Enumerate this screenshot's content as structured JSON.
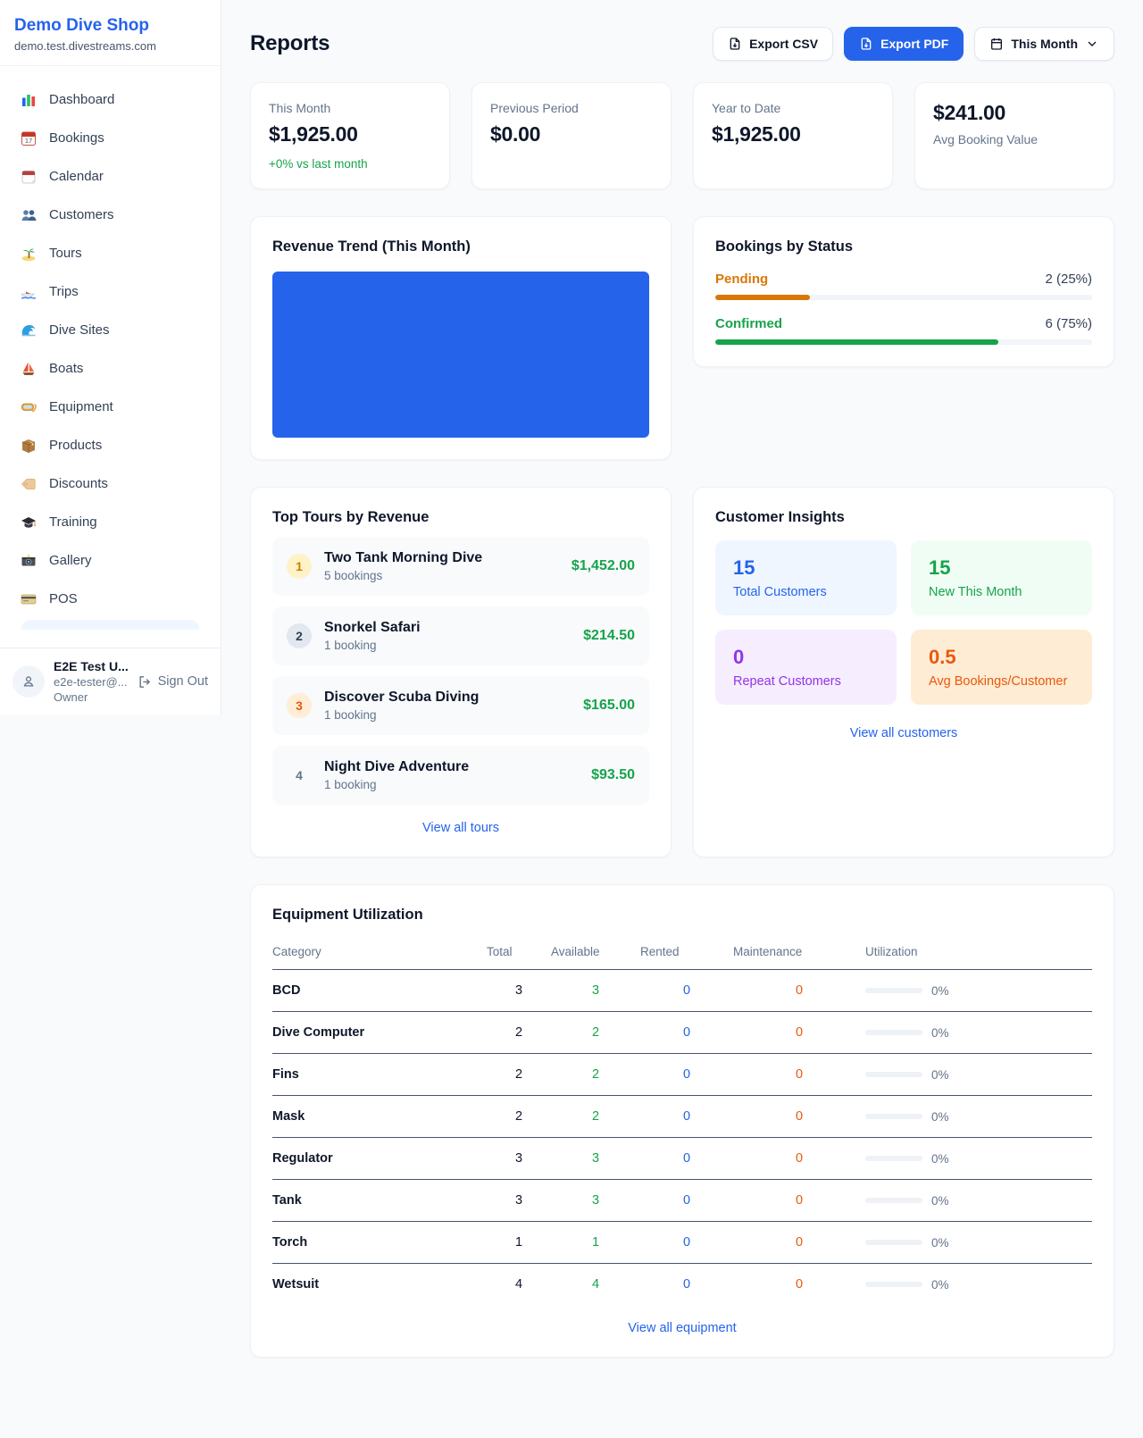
{
  "colors": {
    "brand_blue": "#2563eb",
    "success_green": "#16a34a",
    "pending_orange": "#d97706",
    "maintenance_orange": "#ea580c",
    "repeat_purple": "#9333ea",
    "page_bg": "#f8fafc"
  },
  "sidebar": {
    "brand_name": "Demo Dive Shop",
    "brand_domain": "demo.test.divestreams.com",
    "items": [
      {
        "icon": "bar-chart",
        "label": "Dashboard"
      },
      {
        "icon": "calendar-date",
        "label": "Bookings"
      },
      {
        "icon": "tear-off-calendar",
        "label": "Calendar"
      },
      {
        "icon": "two-people",
        "label": "Customers"
      },
      {
        "icon": "desert-island",
        "label": "Tours"
      },
      {
        "icon": "speedboat",
        "label": "Trips"
      },
      {
        "icon": "ocean-wave",
        "label": "Dive Sites"
      },
      {
        "icon": "sailboat",
        "label": "Boats"
      },
      {
        "icon": "diving-mask",
        "label": "Equipment"
      },
      {
        "icon": "package-box",
        "label": "Products"
      },
      {
        "icon": "price-tag",
        "label": "Discounts"
      },
      {
        "icon": "graduation-cap",
        "label": "Training"
      },
      {
        "icon": "camera-flash",
        "label": "Gallery"
      },
      {
        "icon": "credit-card",
        "label": "POS"
      }
    ],
    "user": {
      "name": "E2E Test U...",
      "email": "e2e-tester@...",
      "role": "Owner",
      "sign_out_label": "Sign Out"
    }
  },
  "header": {
    "title": "Reports",
    "export_csv_label": "Export CSV",
    "export_pdf_label": "Export PDF",
    "period_label": "This Month"
  },
  "stats": {
    "this_month": {
      "label": "This Month",
      "value": "$1,925.00",
      "delta": "+0% vs last month"
    },
    "previous_period": {
      "label": "Previous Period",
      "value": "$0.00"
    },
    "year_to_date": {
      "label": "Year to Date",
      "value": "$1,925.00"
    },
    "avg_booking": {
      "value": "$241.00",
      "label": "Avg Booking Value"
    }
  },
  "revenue_trend": {
    "title": "Revenue Trend (This Month)",
    "bar_color": "#2563eb"
  },
  "bookings_by_status": {
    "title": "Bookings by Status",
    "statuses": [
      {
        "label": "Pending",
        "count_text": "2 (25%)",
        "percent": 25,
        "color": "#d97706"
      },
      {
        "label": "Confirmed",
        "count_text": "6 (75%)",
        "percent": 75,
        "color": "#16a34a"
      }
    ]
  },
  "top_tours": {
    "title": "Top Tours by Revenue",
    "view_all_label": "View all tours",
    "tours": [
      {
        "rank": "1",
        "name": "Two Tank Morning Dive",
        "bookings": "5 bookings",
        "revenue": "$1,452.00"
      },
      {
        "rank": "2",
        "name": "Snorkel Safari",
        "bookings": "1 booking",
        "revenue": "$214.50"
      },
      {
        "rank": "3",
        "name": "Discover Scuba Diving",
        "bookings": "1 booking",
        "revenue": "$165.00"
      },
      {
        "rank": "4",
        "name": "Night Dive Adventure",
        "bookings": "1 booking",
        "revenue": "$93.50"
      }
    ]
  },
  "customer_insights": {
    "title": "Customer Insights",
    "view_all_label": "View all customers",
    "tiles": [
      {
        "value": "15",
        "label": "Total Customers",
        "color": "#2563eb"
      },
      {
        "value": "15",
        "label": "New This Month",
        "color": "#16a34a"
      },
      {
        "value": "0",
        "label": "Repeat Customers",
        "color": "#9333ea"
      },
      {
        "value": "0.5",
        "label": "Avg Bookings/Customer",
        "color": "#ea580c"
      }
    ]
  },
  "equipment": {
    "title": "Equipment Utilization",
    "view_all_label": "View all equipment",
    "columns": [
      "Category",
      "Total",
      "Available",
      "Rented",
      "Maintenance",
      "Utilization"
    ],
    "rows": [
      {
        "category": "BCD",
        "total": "3",
        "available": "3",
        "rented": "0",
        "maintenance": "0",
        "utilization": "0%",
        "utilization_percent": 0
      },
      {
        "category": "Dive Computer",
        "total": "2",
        "available": "2",
        "rented": "0",
        "maintenance": "0",
        "utilization": "0%",
        "utilization_percent": 0
      },
      {
        "category": "Fins",
        "total": "2",
        "available": "2",
        "rented": "0",
        "maintenance": "0",
        "utilization": "0%",
        "utilization_percent": 0
      },
      {
        "category": "Mask",
        "total": "2",
        "available": "2",
        "rented": "0",
        "maintenance": "0",
        "utilization": "0%",
        "utilization_percent": 0
      },
      {
        "category": "Regulator",
        "total": "3",
        "available": "3",
        "rented": "0",
        "maintenance": "0",
        "utilization": "0%",
        "utilization_percent": 0
      },
      {
        "category": "Tank",
        "total": "3",
        "available": "3",
        "rented": "0",
        "maintenance": "0",
        "utilization": "0%",
        "utilization_percent": 0
      },
      {
        "category": "Torch",
        "total": "1",
        "available": "1",
        "rented": "0",
        "maintenance": "0",
        "utilization": "0%",
        "utilization_percent": 0
      },
      {
        "category": "Wetsuit",
        "total": "4",
        "available": "4",
        "rented": "0",
        "maintenance": "0",
        "utilization": "0%",
        "utilization_percent": 0
      }
    ]
  }
}
